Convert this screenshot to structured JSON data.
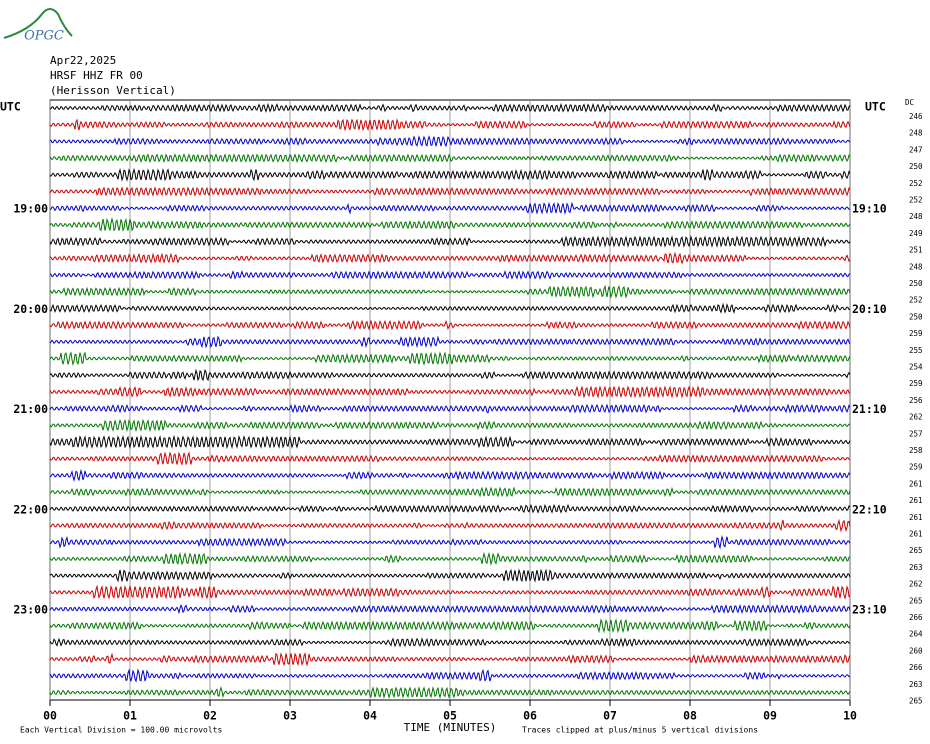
{
  "logo": "OPGC",
  "header": {
    "date": "Apr22,2025",
    "station": "HRSF HHZ FR 00",
    "location": "(Herisson Vertical)"
  },
  "left_axis": {
    "title": "UTC",
    "labels": [
      "19:00",
      "20:00",
      "21:00",
      "22:00",
      "23:00"
    ]
  },
  "right_axis": {
    "title": "UTC",
    "labels": [
      "19:10",
      "20:10",
      "21:10",
      "22:10",
      "23:10"
    ]
  },
  "dc": {
    "title": "DC",
    "values": [
      246,
      248,
      247,
      250,
      252,
      252,
      248,
      249,
      251,
      248,
      250,
      252,
      250,
      259,
      255,
      254,
      259,
      256,
      262,
      257,
      258,
      259,
      261,
      261,
      261,
      261,
      265,
      263,
      262,
      265,
      266,
      264,
      260,
      266,
      263,
      265
    ]
  },
  "x_axis": {
    "title": "TIME (MINUTES)",
    "ticks": [
      "00",
      "01",
      "02",
      "03",
      "04",
      "05",
      "06",
      "07",
      "08",
      "09",
      "10"
    ]
  },
  "footer": {
    "scale": "Each Vertical Division =  100.00 microvolts",
    "clip": "Traces clipped at plus/minus 5 vertical divisions"
  }
}
